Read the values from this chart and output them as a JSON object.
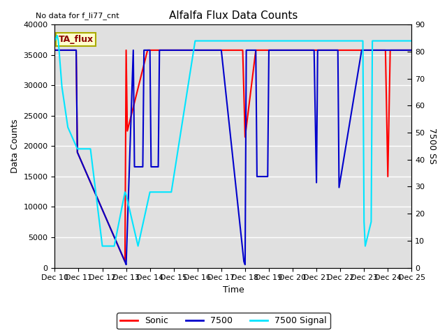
{
  "title": "Alfalfa Flux Data Counts",
  "subtitle": "No data for f_li77_cnt",
  "xlabel": "Time",
  "ylabel_left": "Data Counts",
  "ylabel_right": "7500 SS",
  "box_label": "TA_flux",
  "x_labels": [
    "Dec 10",
    "Dec 11",
    "Dec 12",
    "Dec 13",
    "Dec 14",
    "Dec 15",
    "Dec 16",
    "Dec 17",
    "Dec 18",
    "Dec 19",
    "Dec 20",
    "Dec 21",
    "Dec 22",
    "Dec 23",
    "Dec 24",
    "Dec 25"
  ],
  "ylim_left": [
    0,
    40000
  ],
  "ylim_right": [
    0,
    90
  ],
  "yticks_left": [
    0,
    5000,
    10000,
    15000,
    20000,
    25000,
    30000,
    35000,
    40000
  ],
  "yticks_right": [
    0,
    10,
    20,
    30,
    40,
    50,
    60,
    70,
    80,
    90
  ],
  "bg_color": "#e0e0e0",
  "sonic_color": "#ff0000",
  "flux7500_color": "#0000cc",
  "signal_color": "#00e5ff",
  "sonic_x": [
    10.0,
    10.9,
    10.95,
    12.95,
    13.0,
    13.05,
    13.9,
    14.1,
    15.9,
    16.0,
    16.9,
    17.0,
    17.9,
    18.0,
    18.45,
    18.5,
    18.9,
    19.0,
    19.9,
    20.0,
    22.9,
    23.0,
    23.9,
    24.0,
    24.1,
    25.0
  ],
  "sonic_y": [
    35800,
    35800,
    19000,
    1000,
    35800,
    22500,
    35800,
    35800,
    35800,
    35800,
    35800,
    35800,
    35800,
    21500,
    35800,
    35800,
    35800,
    35800,
    35800,
    35800,
    35800,
    35800,
    35800,
    15000,
    35800,
    35800
  ],
  "flux7500_x": [
    10.0,
    10.9,
    10.95,
    12.95,
    13.0,
    13.3,
    13.35,
    13.7,
    13.75,
    14.0,
    14.05,
    14.35,
    14.4,
    14.9,
    14.95,
    15.9,
    16.0,
    16.9,
    17.0,
    17.95,
    18.0,
    18.05,
    18.45,
    18.5,
    18.95,
    19.0,
    20.9,
    21.0,
    21.05,
    21.9,
    21.95,
    22.9,
    23.0,
    23.9,
    24.0,
    25.0
  ],
  "flux7500_y": [
    35800,
    35800,
    19000,
    1000,
    500,
    35800,
    16600,
    16600,
    35800,
    35800,
    16600,
    16600,
    35800,
    35800,
    35800,
    35800,
    35800,
    35800,
    35800,
    1000,
    500,
    35800,
    35800,
    15000,
    15000,
    35800,
    35800,
    14000,
    35800,
    35800,
    13200,
    35800,
    35800,
    35800,
    35800,
    35800
  ],
  "signal_x": [
    10.0,
    10.1,
    10.15,
    10.3,
    10.55,
    10.9,
    10.95,
    11.5,
    12.0,
    12.5,
    12.95,
    13.0,
    13.5,
    14.0,
    14.9,
    15.9,
    16.0,
    16.5,
    17.0,
    17.5,
    18.0,
    18.5,
    18.9,
    19.0,
    19.5,
    20.0,
    20.5,
    21.0,
    21.5,
    22.0,
    22.5,
    22.9,
    22.95,
    23.0,
    23.05,
    23.3,
    23.35,
    23.9,
    24.0,
    24.05,
    25.0
  ],
  "signal_y": [
    84,
    86,
    84,
    67,
    52,
    45,
    44,
    44,
    8,
    8,
    28,
    27,
    8,
    28,
    28,
    84,
    84,
    84,
    84,
    84,
    84,
    84,
    84,
    84,
    84,
    84,
    84,
    84,
    84,
    84,
    84,
    84,
    84,
    17,
    8,
    17,
    84,
    84,
    84,
    84,
    84
  ]
}
